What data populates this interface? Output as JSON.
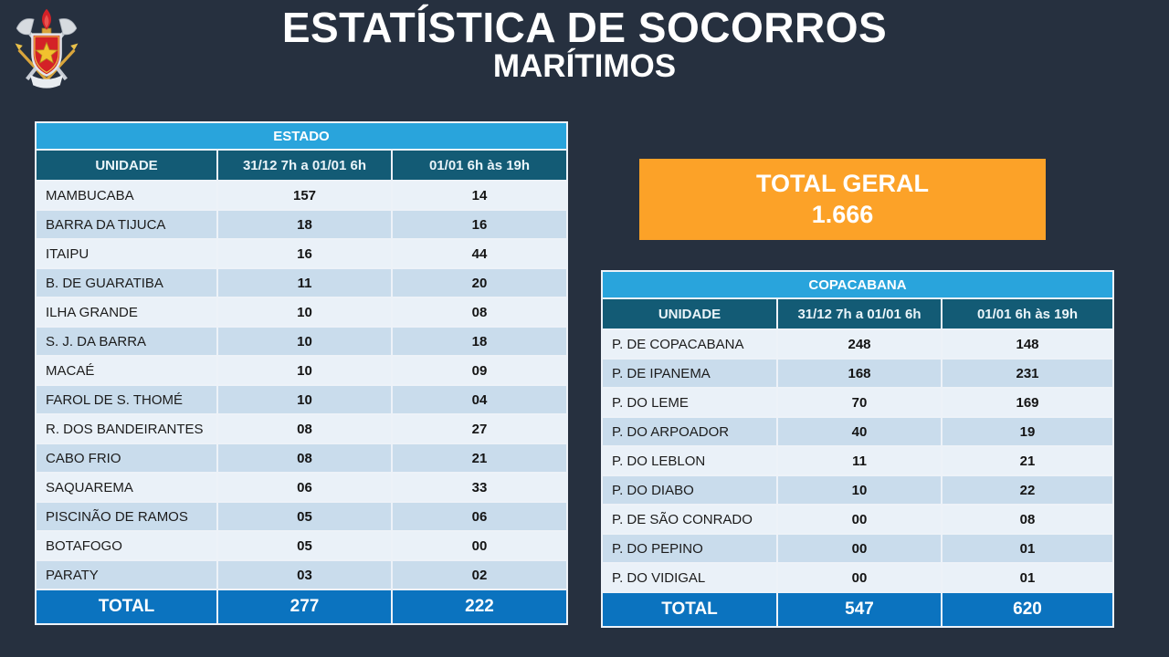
{
  "slide": {
    "title_line1": "ESTATÍSTICA DE SOCORROS",
    "title_line2": "MARÍTIMOS"
  },
  "logo": {
    "name": "fire-brigade-crest"
  },
  "total_geral": {
    "label": "TOTAL GERAL",
    "value": "1.666"
  },
  "tables": {
    "estado": {
      "title": "ESTADO",
      "columns": [
        "UNIDADE",
        "31/12 7h a 01/01 6h",
        "01/01 6h às 19h"
      ],
      "rows": [
        [
          "MAMBUCABA",
          "157",
          "14"
        ],
        [
          "BARRA DA TIJUCA",
          "18",
          "16"
        ],
        [
          "ITAIPU",
          "16",
          "44"
        ],
        [
          "B. DE GUARATIBA",
          "11",
          "20"
        ],
        [
          "ILHA GRANDE",
          "10",
          "08"
        ],
        [
          "S. J. DA BARRA",
          "10",
          "18"
        ],
        [
          "MACAÉ",
          "10",
          "09"
        ],
        [
          "FAROL DE S. THOMÉ",
          "10",
          "04"
        ],
        [
          "R. DOS BANDEIRANTES",
          "08",
          "27"
        ],
        [
          "CABO FRIO",
          "08",
          "21"
        ],
        [
          "SAQUAREMA",
          "06",
          "33"
        ],
        [
          "PISCINÃO DE RAMOS",
          "05",
          "06"
        ],
        [
          "BOTAFOGO",
          "05",
          "00"
        ],
        [
          "PARATY",
          "03",
          "02"
        ]
      ],
      "total": [
        "TOTAL",
        "277",
        "222"
      ]
    },
    "copacabana": {
      "title": "COPACABANA",
      "columns": [
        "UNIDADE",
        "31/12 7h a 01/01 6h",
        "01/01 6h às 19h"
      ],
      "rows": [
        [
          "P. DE COPACABANA",
          "248",
          "148"
        ],
        [
          "P. DE IPANEMA",
          "168",
          "231"
        ],
        [
          "P. DO LEME",
          "70",
          "169"
        ],
        [
          "P. DO ARPOADOR",
          "40",
          "19"
        ],
        [
          "P. DO LEBLON",
          "11",
          "21"
        ],
        [
          "P. DO DIABO",
          "10",
          "22"
        ],
        [
          "P. DE SÃO CONRADO",
          "00",
          "08"
        ],
        [
          "P. DO PEPINO",
          "00",
          "01"
        ],
        [
          "P. DO VIDIGAL",
          "00",
          "01"
        ]
      ],
      "total": [
        "TOTAL",
        "547",
        "620"
      ]
    }
  },
  "colors": {
    "background": "#26303F",
    "band_blue": "#29A4DC",
    "header_teal": "#135B75",
    "row_light": "#EAF1F8",
    "row_dark": "#C9DCEC",
    "total_blue": "#0B73BF",
    "orange": "#FCA228",
    "title_white": "#FFFFFF"
  }
}
